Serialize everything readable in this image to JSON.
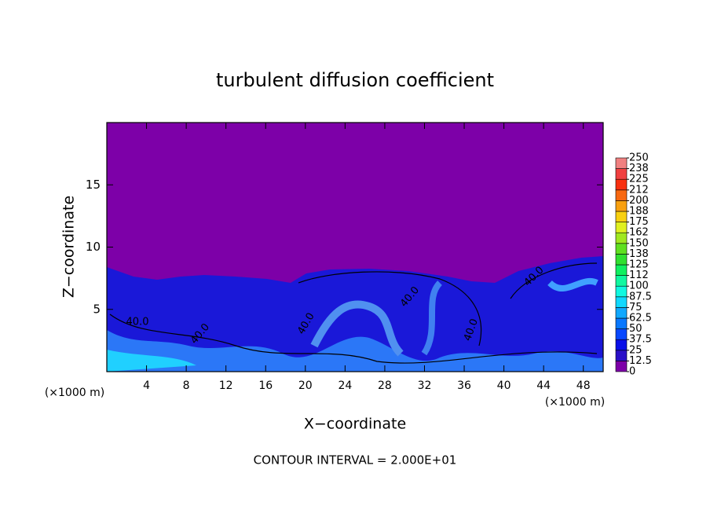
{
  "chart_data": {
    "type": "contour",
    "title": "turbulent diffusion coefficient",
    "xlabel": "X−coordinate",
    "ylabel": "Z−coordinate",
    "x_unit": "(×1000 m)",
    "footer": "CONTOUR INTERVAL = 2.000E+01",
    "xlim": [
      0,
      50
    ],
    "xticks": [
      4,
      8,
      12,
      16,
      20,
      24,
      28,
      32,
      36,
      40,
      44,
      48
    ],
    "ylim": [
      0,
      20
    ],
    "yticks": [
      5,
      10,
      15
    ],
    "contour_labels": [
      "40.0",
      "40.0",
      "40.0",
      "40.0",
      "40.0",
      "40.0"
    ],
    "colorbar": {
      "ticks": [
        0,
        12.5,
        25,
        37.5,
        50,
        62.5,
        75,
        87.5,
        100,
        {
          "value": 112.5,
          "label": "112"
        },
        125,
        {
          "value": 137.5,
          "label": "138"
        },
        150,
        {
          "value": 162.5,
          "label": "162"
        },
        175,
        {
          "value": 187.5,
          "label": "188"
        },
        200,
        {
          "value": 212.5,
          "label": "212"
        },
        225,
        {
          "value": 237.5,
          "label": "238"
        },
        250
      ],
      "colors": [
        "#7d00a8",
        "#2a10c8",
        "#0a10e8",
        "#0848ff",
        "#0878ff",
        "#10a8ff",
        "#10d8ff",
        "#10f8e0",
        "#10f8a0",
        "#10f060",
        "#30e030",
        "#60e020",
        "#a0e820",
        "#e0f020",
        "#f8d010",
        "#f8a010",
        "#f86810",
        "#f83010",
        "#f04040",
        "#f08080"
      ]
    }
  }
}
